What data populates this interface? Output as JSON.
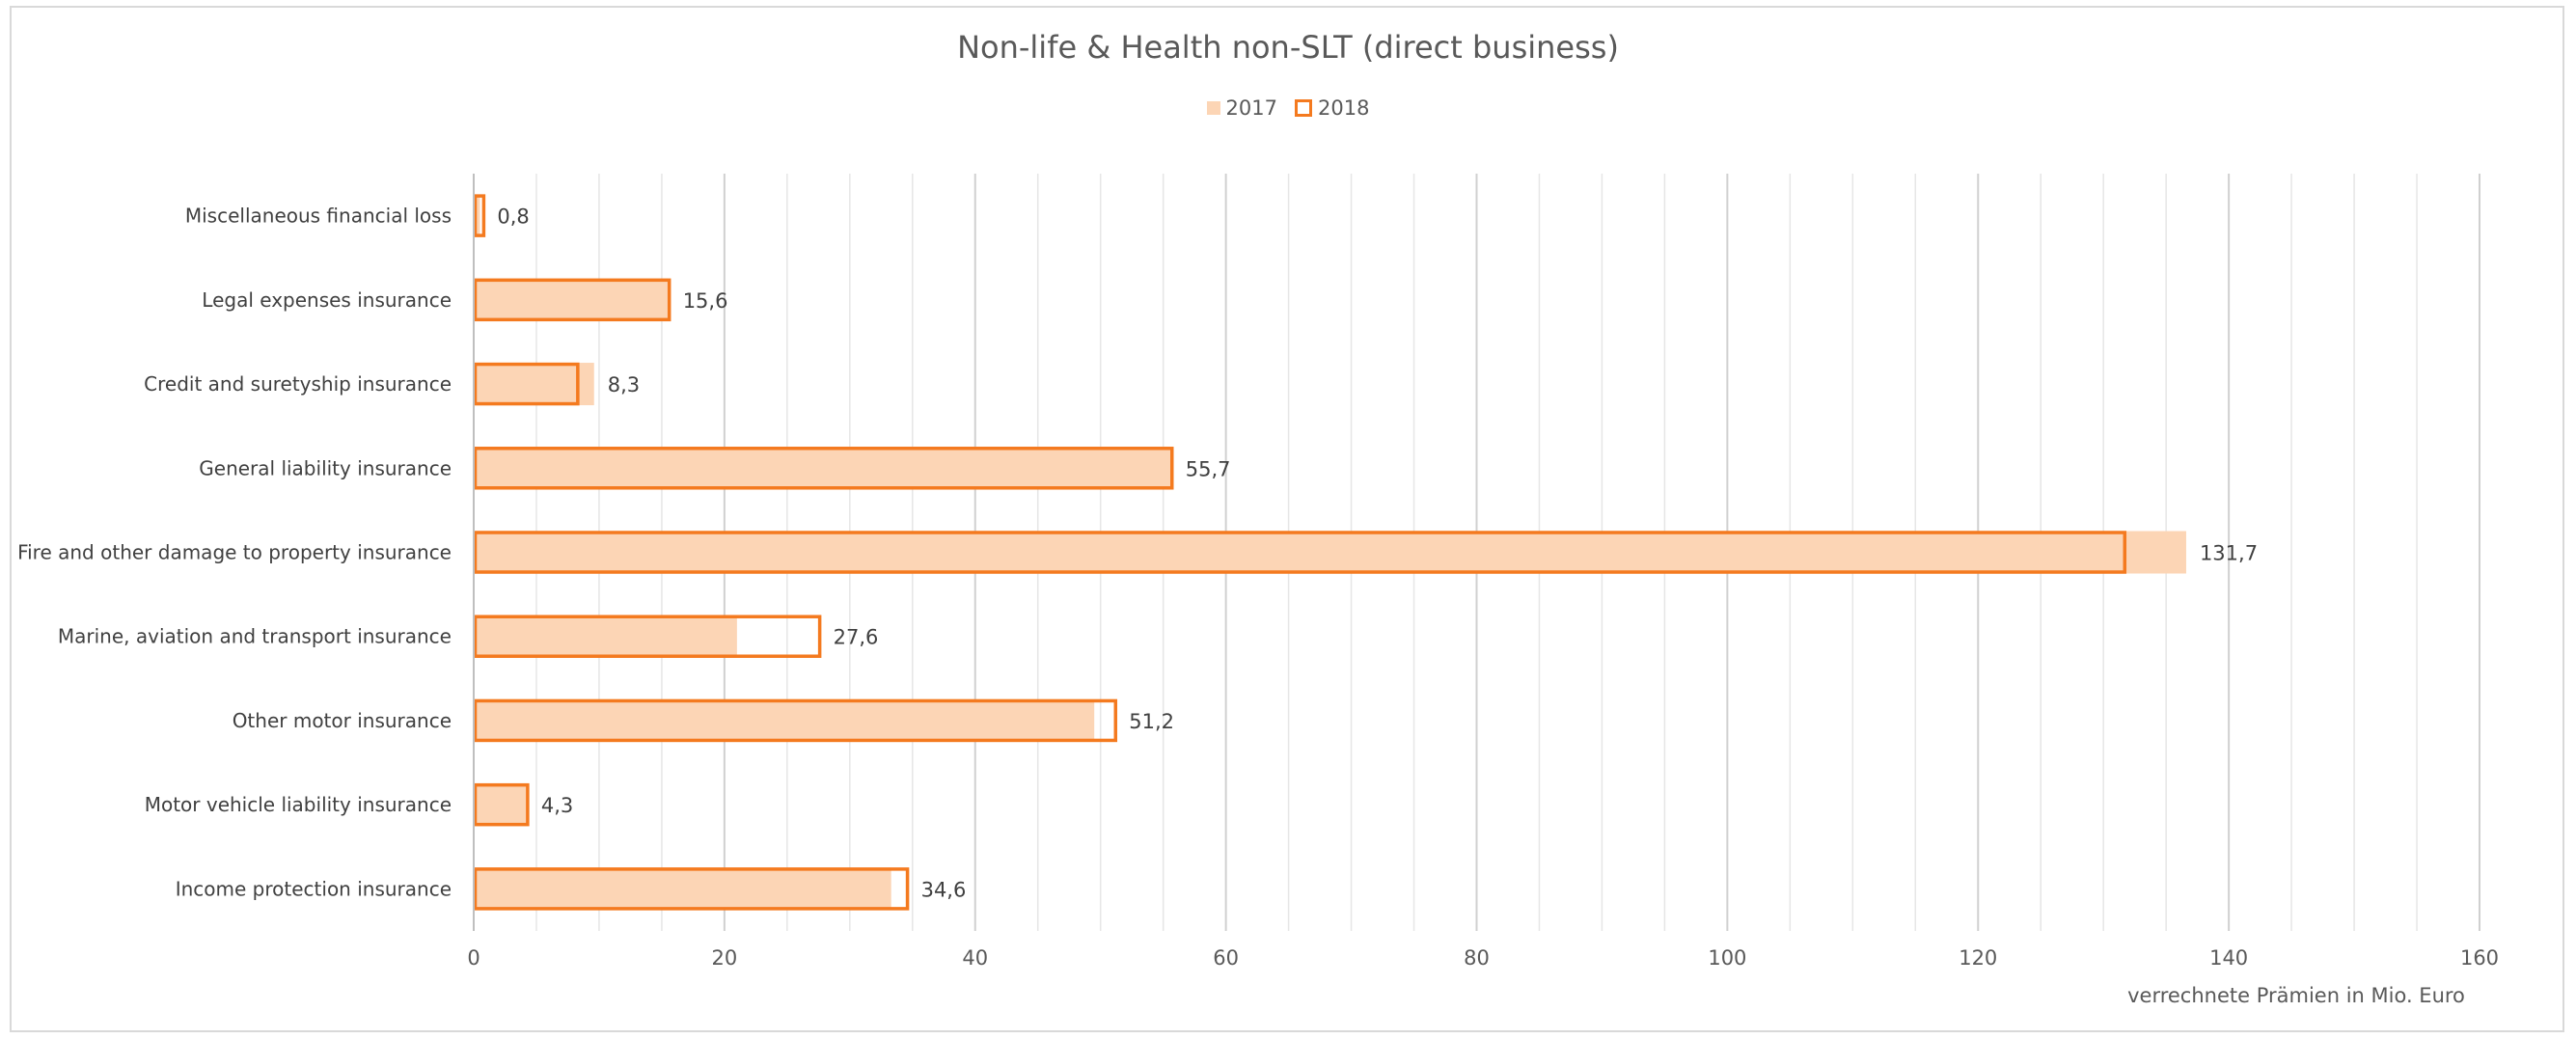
{
  "chart_data": {
    "type": "bar",
    "orientation": "horizontal",
    "title": "Non-life & Health non-SLT (direct business)",
    "xlabel": "verrechnete  Prämien in Mio. Euro",
    "ylabel": "",
    "xlim": [
      0,
      160
    ],
    "x_ticks": [
      "0",
      "20",
      "40",
      "60",
      "80",
      "100",
      "120",
      "140",
      "160"
    ],
    "grid": true,
    "legend_position": "top",
    "categories": [
      "Miscellaneous financial loss",
      "Legal expenses insurance",
      "Credit and suretyship insurance",
      "General liability insurance",
      "Fire and other damage to property insurance",
      "Marine, aviation and transport insurance",
      "Other motor insurance",
      "Motor vehicle liability insurance",
      "Income protection insurance"
    ],
    "series": [
      {
        "name": "2017",
        "color": "#fcd5b5",
        "values": [
          0.5,
          15.5,
          9.6,
          55.6,
          136.6,
          21.0,
          49.5,
          4.2,
          33.3
        ]
      },
      {
        "name": "2018",
        "color": "#f47a1f",
        "values": [
          0.8,
          15.6,
          8.3,
          55.7,
          131.7,
          27.6,
          51.2,
          4.3,
          34.6
        ],
        "labels": [
          "0,8",
          "15,6",
          "8,3",
          "55,7",
          "131,7",
          "27,6",
          "51,2",
          "4,3",
          "34,6"
        ]
      }
    ]
  }
}
